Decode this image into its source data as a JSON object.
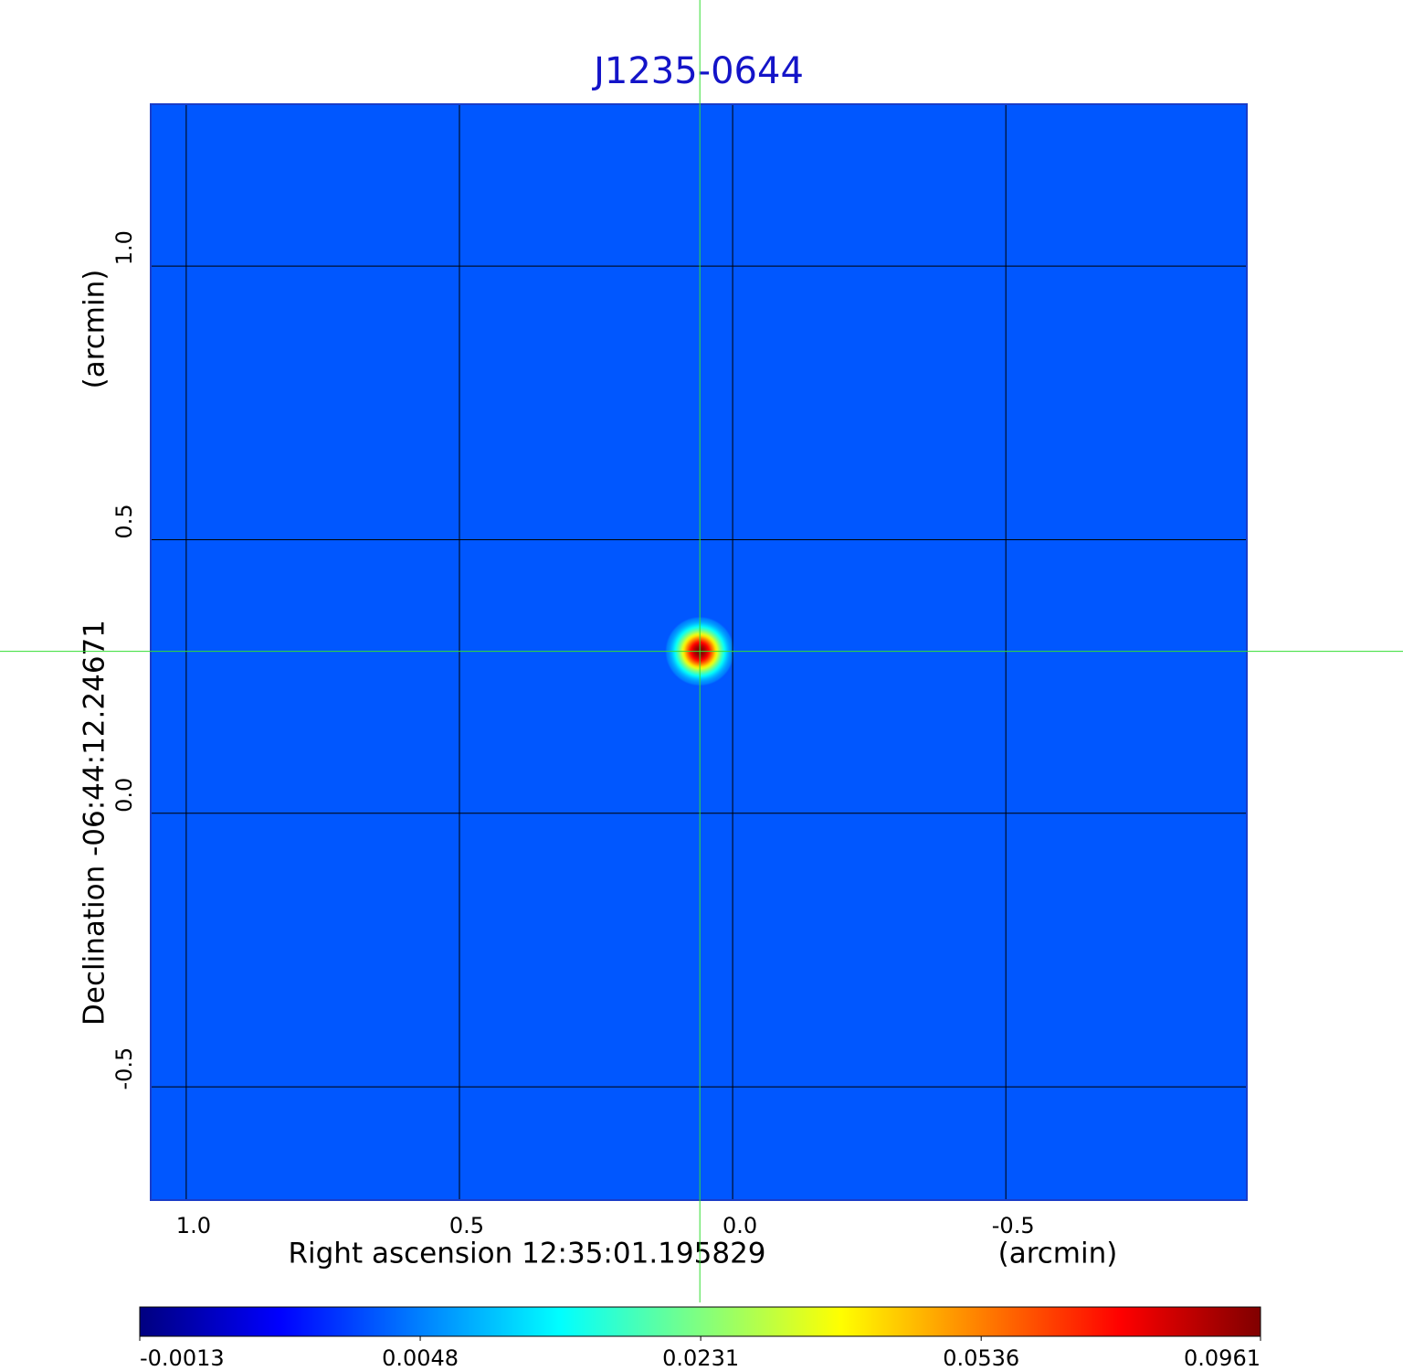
{
  "chart_data": {
    "type": "image",
    "title": "J1235-0644",
    "x_label": "Right ascension  12:35:01.195829",
    "x_unit": "(arcmin)",
    "y_label": "Declination  -06:44:12.24671",
    "y_unit": "(arcmin)",
    "xlim": [
      1.065,
      -0.941
    ],
    "ylim": [
      -0.707,
      1.296
    ],
    "xticks": [
      {
        "value": 1,
        "label": "1.0"
      },
      {
        "value": 0.5,
        "label": "0.5"
      },
      {
        "value": 0,
        "label": "0.0"
      },
      {
        "value": -0.5,
        "label": "-0.5"
      }
    ],
    "yticks": [
      {
        "value": -0.5,
        "label": "-0.5"
      },
      {
        "value": 0,
        "label": "0.0"
      },
      {
        "value": 0.5,
        "label": "0.5"
      },
      {
        "value": 1,
        "label": "1.0"
      }
    ],
    "grid": true,
    "colormap": "jet",
    "colorbar_scale": "sqrt",
    "clim": [
      -0.0013,
      0.0961
    ],
    "cticks": [
      -0.0013,
      0.0048,
      0.0231,
      0.0536,
      0.0961
    ],
    "background": 0.003,
    "source": {
      "x": 0.06,
      "y": 0.296,
      "peak": 0.0961,
      "fwhm": 0.05
    },
    "crosshair_color": "#33dd33",
    "title_color": "#1414c8"
  }
}
